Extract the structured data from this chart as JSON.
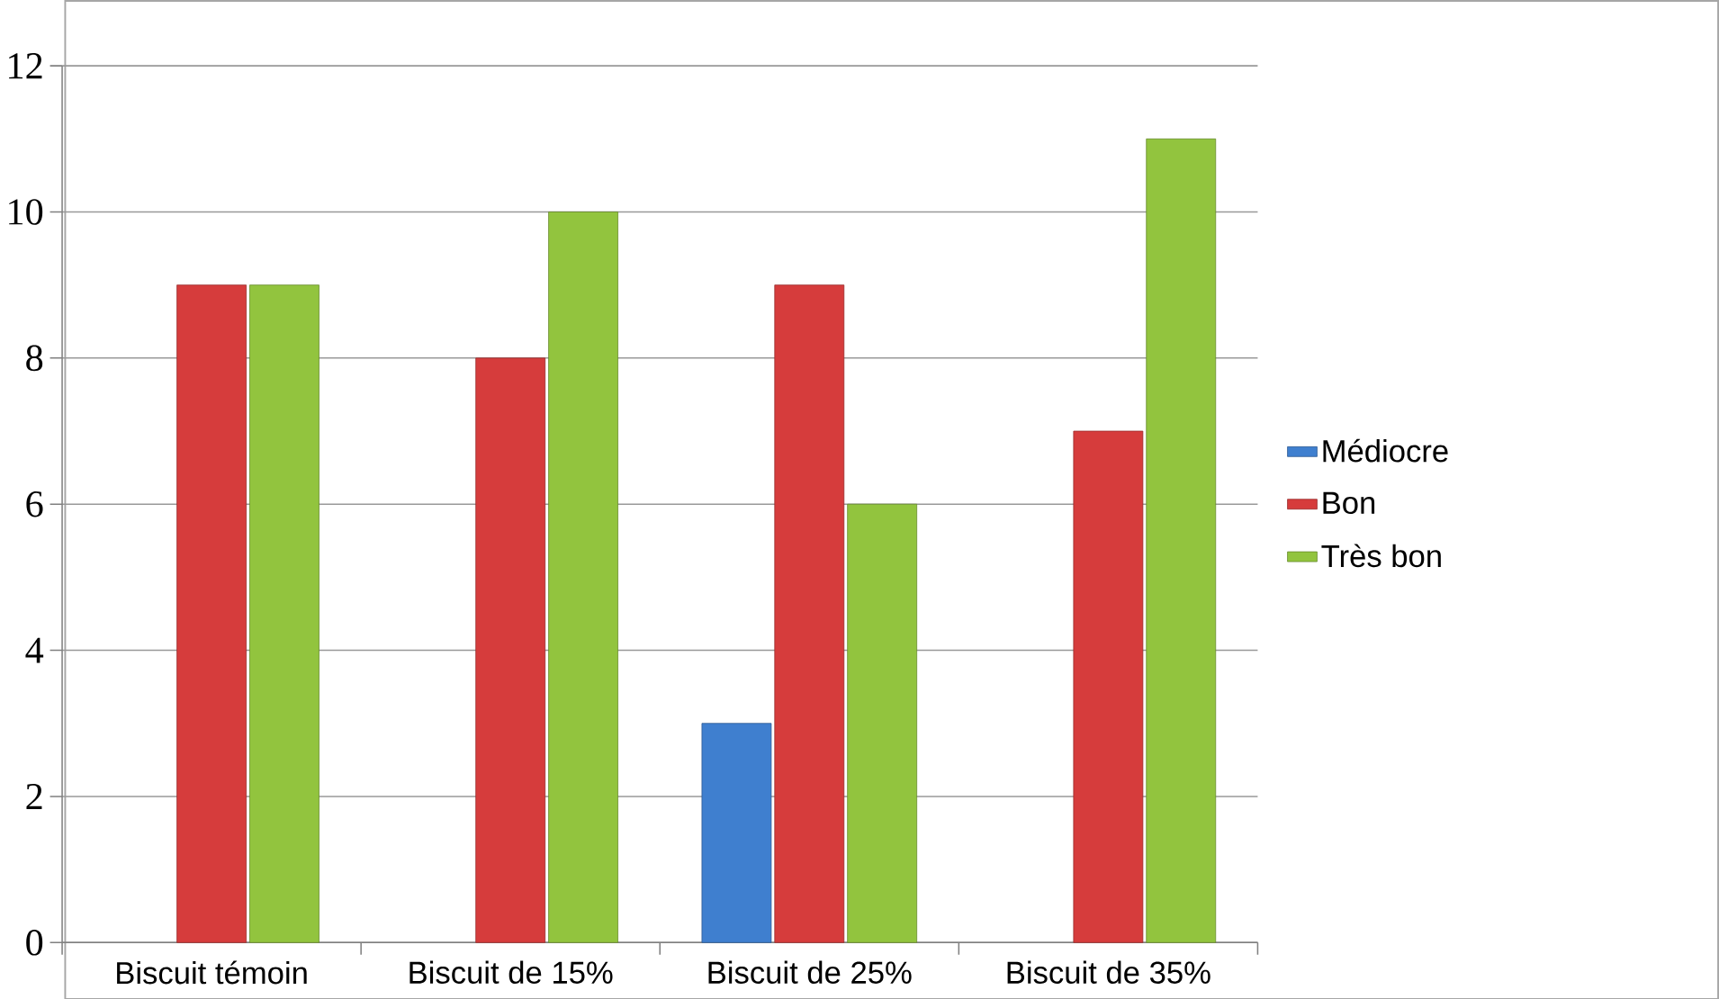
{
  "chart_data": {
    "type": "bar",
    "categories": [
      "Biscuit témoin",
      "Biscuit de 15%",
      "Biscuit de 25%",
      "Biscuit de 35%"
    ],
    "series": [
      {
        "name": "Médiocre",
        "color": "#3f7fcf",
        "values": [
          null,
          null,
          3,
          null
        ]
      },
      {
        "name": "Bon",
        "color": "#d63c3c",
        "values": [
          9,
          8,
          9,
          7
        ]
      },
      {
        "name": "Très bon",
        "color": "#92c43e",
        "values": [
          9,
          10,
          6,
          11
        ]
      }
    ],
    "ylim": [
      0,
      12
    ],
    "yticks": [
      0,
      2,
      4,
      6,
      8,
      10,
      12
    ],
    "grid": "y",
    "legend": "right"
  }
}
